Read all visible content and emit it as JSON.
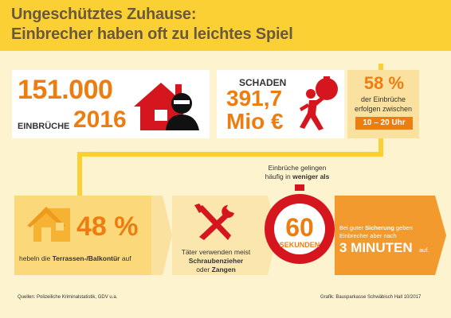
{
  "header": {
    "title_line1": "Ungeschütztes Zuhause:",
    "title_line2": "Einbrecher haben oft zu leichtes Spiel"
  },
  "stat_burglaries": {
    "number": "151.000",
    "label": "EINBRÜCHE",
    "year": "2016"
  },
  "stat_damage": {
    "label": "SCHADEN",
    "value": "391,7",
    "unit": "Mio €"
  },
  "stat_time": {
    "percent": "58 %",
    "text_line1": "der Einbrüche",
    "text_line2": "erfolgen zwischen",
    "time_range": "10 – 20 Uhr"
  },
  "stat_entry": {
    "percent": "48 %",
    "text_prefix": "hebeln die ",
    "text_bold": "Terrassen-/Balkontür",
    "text_suffix": " auf"
  },
  "stat_tools": {
    "line1": "Täter verwenden meist",
    "line2_bold": "Schraubenzieher",
    "line3_prefix": "oder ",
    "line3_bold": "Zangen"
  },
  "stat_timer": {
    "caption_line1": "Einbrüche gelingen",
    "caption_line2_prefix": "häufig in ",
    "caption_line2_bold": "weniger als",
    "number": "60",
    "unit": "SEKUNDEN"
  },
  "stat_security": {
    "line1_prefix": "Bei guter ",
    "line1_bold": "Sicherung",
    "line1_suffix": " geben",
    "line2": "Einbrecher aber nach",
    "big": "3 MINUTEN",
    "suffix": "auf."
  },
  "footer": {
    "source": "Quellen: Polizeiliche Kriminalstatistik, GDV u.a.",
    "credit": "Grafik: Bausparkasse Schwäbisch Hall 10/2017"
  },
  "colors": {
    "orange": "#ee7d11",
    "red": "#d6161e",
    "yellow": "#fbd034",
    "background": "#fdf3cf"
  }
}
